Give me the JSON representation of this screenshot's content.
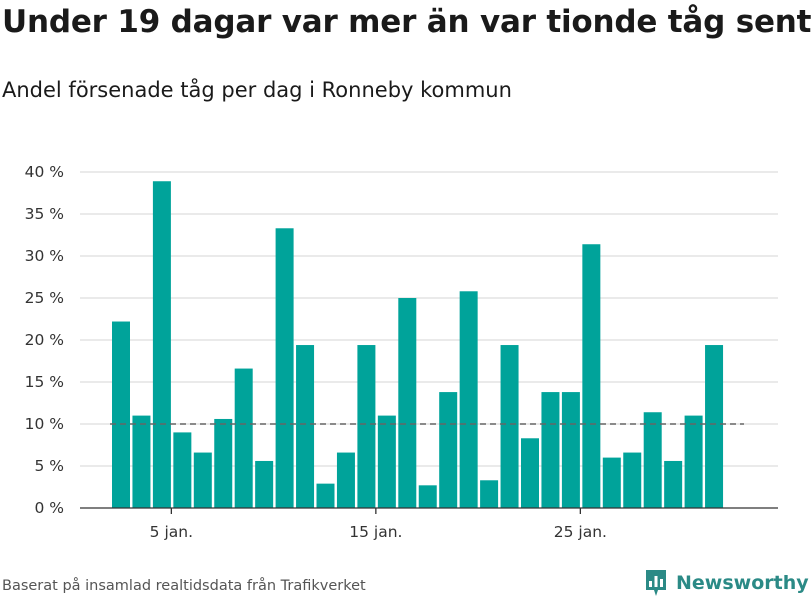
{
  "header": {
    "title": "Under 19 dagar var mer än var tionde tåg sent",
    "subtitle": "Andel försenade tåg per dag i Ronneby kommun"
  },
  "footer": {
    "source": "Baserat på insamlad realtidsdata från Trafikverket",
    "brand": "Newsworthy"
  },
  "colors": {
    "bar": "#00a39a",
    "grid": "#dddddd",
    "axis": "#333333",
    "reference": "#666666",
    "brand": "#2b8a86"
  },
  "icons": {
    "brand_logo": "newsworthy-bar-chart-icon"
  },
  "chart_data": {
    "type": "bar",
    "title": "Under 19 dagar var mer än var tionde tåg sent",
    "subtitle": "Andel försenade tåg per dag i Ronneby kommun",
    "xlabel": "",
    "ylabel": "",
    "x": [
      "2022-01-02",
      "2022-01-03",
      "2022-01-04",
      "2022-01-05",
      "2022-01-06",
      "2022-01-07",
      "2022-01-08",
      "2022-01-09",
      "2022-01-10",
      "2022-01-11",
      "2022-01-12",
      "2022-01-13",
      "2022-01-14",
      "2022-01-15",
      "2022-01-16",
      "2022-01-17",
      "2022-01-18",
      "2022-01-19",
      "2022-01-20",
      "2022-01-21",
      "2022-01-22",
      "2022-01-23",
      "2022-01-24",
      "2022-01-25",
      "2022-01-26",
      "2022-01-27",
      "2022-01-28",
      "2022-01-29",
      "2022-01-30",
      "2022-01-31"
    ],
    "values": [
      22.2,
      11.0,
      38.9,
      9.0,
      6.6,
      10.6,
      16.6,
      5.6,
      33.3,
      19.4,
      2.9,
      6.6,
      19.4,
      11.0,
      25.0,
      2.7,
      13.8,
      25.8,
      3.3,
      19.4,
      8.3,
      13.8,
      13.8,
      31.4,
      6.0,
      6.6,
      11.4,
      5.6,
      11.0,
      19.4
    ],
    "ylim": [
      0,
      40
    ],
    "yticks": [
      0,
      5,
      10,
      15,
      20,
      25,
      30,
      35,
      40
    ],
    "ytick_labels": [
      "0 %",
      "5 %",
      "10 %",
      "15 %",
      "20 %",
      "25 %",
      "30 %",
      "35 %",
      "40 %"
    ],
    "xtick_dates": [
      "2022-01-05",
      "2022-01-15",
      "2022-01-25"
    ],
    "xtick_labels": [
      "5 jan.",
      "15 jan.",
      "25 jan."
    ],
    "reference_line": 10,
    "grid": true
  }
}
